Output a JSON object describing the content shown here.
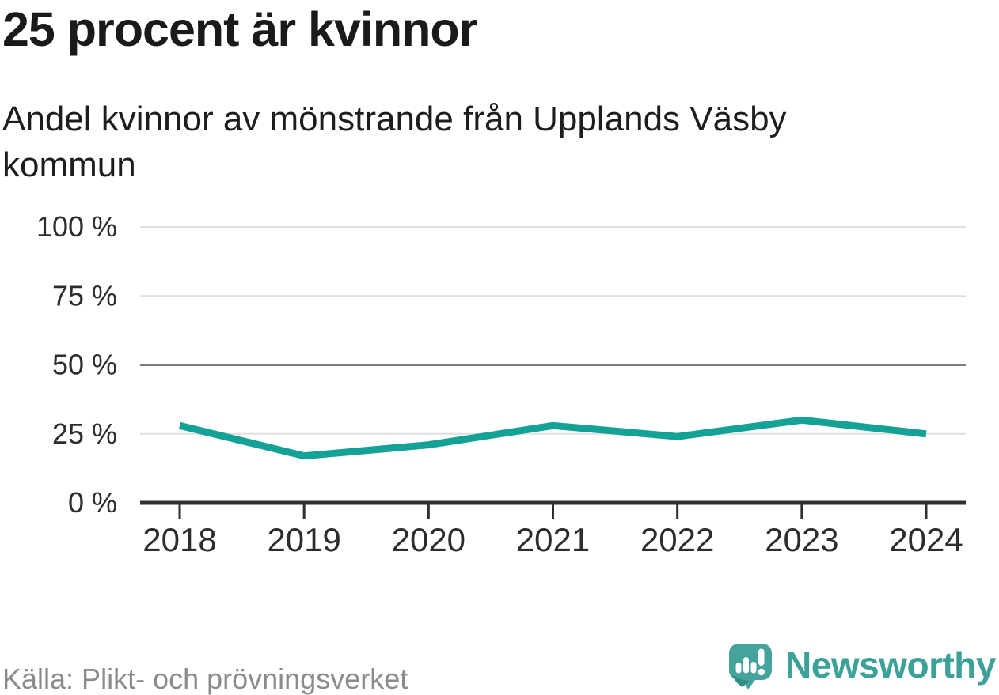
{
  "chart_data": {
    "type": "line",
    "title": "25 procent är kvinnor",
    "subtitle": "Andel kvinnor av mönstrande från Upplands Väsby kommun",
    "x": [
      "2018",
      "2019",
      "2020",
      "2021",
      "2022",
      "2023",
      "2024"
    ],
    "values": [
      28,
      17,
      21,
      28,
      24,
      30,
      25
    ],
    "unit": "%",
    "ylim": [
      0,
      100
    ],
    "ytick_values": [
      0,
      25,
      50,
      75,
      100
    ],
    "ytick_labels": [
      "0 %",
      "25 %",
      "50 %",
      "75 %",
      "100 %"
    ],
    "xlabel": "",
    "ylabel": "",
    "legend": "none",
    "grid": "horizontal gridlines; 50 % line emphasized; solid dark baseline at 0 % with ticks per year",
    "line_color": "#13a295",
    "gridline_color": "#dfdfdf",
    "gridline_emphasis_color": "#7c7c7c",
    "axis_color": "#2f2f2f",
    "axis_label_color": "#2d2d2d"
  },
  "footer": {
    "source": "Källa: Plikt- och prövningsverket",
    "logo": {
      "icon": "newsworthy-speech-bubble-barchart-icon",
      "text": "Newsworthy",
      "icon_color": "#44a39a",
      "text_color": "#3ba199"
    }
  }
}
